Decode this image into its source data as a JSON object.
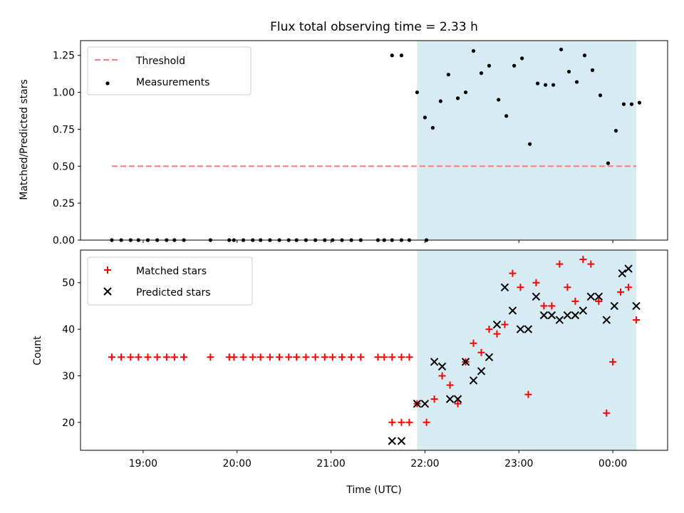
{
  "chart_data": [
    {
      "type": "scatter",
      "title": "Flux total observing time = 2.33 h",
      "xlabel": "",
      "ylabel": "Matched/Predicted stars",
      "ylim": [
        0,
        1.35
      ],
      "yticks": [
        "0.00",
        "0.25",
        "0.50",
        "0.75",
        "1.00",
        "1.25"
      ],
      "xlim": [
        "18:20",
        "00:35"
      ],
      "legend_position": "top-left",
      "shaded_interval": [
        "21:55",
        "00:15"
      ],
      "threshold": {
        "name": "Threshold",
        "value": 0.5,
        "x_range": [
          "18:40",
          "00:15"
        ],
        "color": "#f08080"
      },
      "series": [
        {
          "name": "Measurements",
          "color": "#000000",
          "points": [
            [
              "18:40",
              0
            ],
            [
              "18:46",
              0
            ],
            [
              "18:52",
              0
            ],
            [
              "18:57",
              0
            ],
            [
              "19:03",
              0
            ],
            [
              "19:09",
              0
            ],
            [
              "19:15",
              0
            ],
            [
              "19:20",
              0
            ],
            [
              "19:26",
              0
            ],
            [
              "19:43",
              0
            ],
            [
              "19:55",
              0
            ],
            [
              "19:58",
              0
            ],
            [
              "20:04",
              0
            ],
            [
              "20:10",
              0
            ],
            [
              "20:15",
              0
            ],
            [
              "20:21",
              0
            ],
            [
              "20:27",
              0
            ],
            [
              "20:33",
              0
            ],
            [
              "20:38",
              0
            ],
            [
              "20:44",
              0
            ],
            [
              "20:50",
              0
            ],
            [
              "20:56",
              0
            ],
            [
              "21:01",
              0
            ],
            [
              "21:07",
              0
            ],
            [
              "21:13",
              0
            ],
            [
              "21:19",
              0
            ],
            [
              "21:30",
              0
            ],
            [
              "21:34",
              0
            ],
            [
              "21:39",
              0
            ],
            [
              "21:45",
              0
            ],
            [
              "21:50",
              0
            ],
            [
              "22:01",
              0
            ],
            [
              "21:39",
              1.25
            ],
            [
              "21:45",
              1.25
            ],
            [
              "21:55",
              1.0
            ],
            [
              "22:00",
              0.83
            ],
            [
              "22:05",
              0.76
            ],
            [
              "22:10",
              0.94
            ],
            [
              "22:15",
              1.12
            ],
            [
              "22:21",
              0.96
            ],
            [
              "22:26",
              1.0
            ],
            [
              "22:31",
              1.28
            ],
            [
              "22:36",
              1.13
            ],
            [
              "22:41",
              1.18
            ],
            [
              "22:47",
              0.95
            ],
            [
              "22:52",
              0.84
            ],
            [
              "22:57",
              1.18
            ],
            [
              "23:02",
              1.23
            ],
            [
              "23:07",
              0.65
            ],
            [
              "23:12",
              1.06
            ],
            [
              "23:17",
              1.05
            ],
            [
              "23:22",
              1.05
            ],
            [
              "23:27",
              1.29
            ],
            [
              "23:32",
              1.14
            ],
            [
              "23:37",
              1.07
            ],
            [
              "23:42",
              1.25
            ],
            [
              "23:47",
              1.15
            ],
            [
              "23:52",
              0.98
            ],
            [
              "23:57",
              0.52
            ],
            [
              "00:02",
              0.74
            ],
            [
              "00:07",
              0.92
            ],
            [
              "00:12",
              0.92
            ],
            [
              "00:17",
              0.93
            ]
          ]
        }
      ]
    },
    {
      "type": "scatter",
      "title": "",
      "xlabel": "Time (UTC)",
      "ylabel": "Count",
      "ylim": [
        14,
        57
      ],
      "yticks": [
        "20",
        "30",
        "40",
        "50"
      ],
      "xticks": [
        "19:00",
        "20:00",
        "21:00",
        "22:00",
        "23:00",
        "00:00"
      ],
      "xlim": [
        "18:20",
        "00:35"
      ],
      "legend_position": "top-left",
      "shaded_interval": [
        "21:55",
        "00:15"
      ],
      "series": [
        {
          "name": "Matched stars",
          "marker": "+",
          "color": "#ff0000",
          "points": [
            [
              "18:40",
              34
            ],
            [
              "18:46",
              34
            ],
            [
              "18:52",
              34
            ],
            [
              "18:57",
              34
            ],
            [
              "19:03",
              34
            ],
            [
              "19:09",
              34
            ],
            [
              "19:15",
              34
            ],
            [
              "19:20",
              34
            ],
            [
              "19:26",
              34
            ],
            [
              "19:43",
              34
            ],
            [
              "19:55",
              34
            ],
            [
              "19:58",
              34
            ],
            [
              "20:04",
              34
            ],
            [
              "20:10",
              34
            ],
            [
              "20:15",
              34
            ],
            [
              "20:21",
              34
            ],
            [
              "20:27",
              34
            ],
            [
              "20:33",
              34
            ],
            [
              "20:38",
              34
            ],
            [
              "20:44",
              34
            ],
            [
              "20:50",
              34
            ],
            [
              "20:56",
              34
            ],
            [
              "21:01",
              34
            ],
            [
              "21:07",
              34
            ],
            [
              "21:13",
              34
            ],
            [
              "21:19",
              34
            ],
            [
              "21:30",
              34
            ],
            [
              "21:34",
              34
            ],
            [
              "21:39",
              34
            ],
            [
              "21:45",
              34
            ],
            [
              "21:50",
              34
            ],
            [
              "21:39",
              20
            ],
            [
              "21:45",
              20
            ],
            [
              "21:50",
              20
            ],
            [
              "21:55",
              24
            ],
            [
              "22:01",
              20
            ],
            [
              "22:06",
              25
            ],
            [
              "22:11",
              30
            ],
            [
              "22:16",
              28
            ],
            [
              "22:21",
              24
            ],
            [
              "22:26",
              33
            ],
            [
              "22:31",
              37
            ],
            [
              "22:36",
              35
            ],
            [
              "22:41",
              40
            ],
            [
              "22:46",
              39
            ],
            [
              "22:51",
              41
            ],
            [
              "22:56",
              52
            ],
            [
              "23:01",
              49
            ],
            [
              "23:06",
              26
            ],
            [
              "23:11",
              50
            ],
            [
              "23:16",
              45
            ],
            [
              "23:21",
              45
            ],
            [
              "23:26",
              54
            ],
            [
              "23:31",
              49
            ],
            [
              "23:36",
              46
            ],
            [
              "23:41",
              55
            ],
            [
              "23:46",
              54
            ],
            [
              "23:51",
              46
            ],
            [
              "23:56",
              22
            ],
            [
              "00:00",
              33
            ],
            [
              "00:05",
              48
            ],
            [
              "00:10",
              49
            ],
            [
              "00:15",
              42
            ]
          ]
        },
        {
          "name": "Predicted stars",
          "marker": "x",
          "color": "#000000",
          "points": [
            [
              "21:39",
              16
            ],
            [
              "21:45",
              16
            ],
            [
              "21:55",
              24
            ],
            [
              "22:00",
              24
            ],
            [
              "22:06",
              33
            ],
            [
              "22:11",
              32
            ],
            [
              "22:16",
              25
            ],
            [
              "22:21",
              25
            ],
            [
              "22:26",
              33
            ],
            [
              "22:31",
              29
            ],
            [
              "22:36",
              31
            ],
            [
              "22:41",
              34
            ],
            [
              "22:46",
              41
            ],
            [
              "22:51",
              49
            ],
            [
              "22:56",
              44
            ],
            [
              "23:01",
              40
            ],
            [
              "23:06",
              40
            ],
            [
              "23:11",
              47
            ],
            [
              "23:16",
              43
            ],
            [
              "23:21",
              43
            ],
            [
              "23:26",
              42
            ],
            [
              "23:31",
              43
            ],
            [
              "23:36",
              43
            ],
            [
              "23:41",
              44
            ],
            [
              "23:46",
              47
            ],
            [
              "23:51",
              47
            ],
            [
              "23:56",
              42
            ],
            [
              "00:01",
              45
            ],
            [
              "00:06",
              52
            ],
            [
              "00:10",
              53
            ],
            [
              "00:15",
              45
            ]
          ]
        }
      ]
    }
  ],
  "colors": {
    "shade": "#add8e6",
    "threshold": "#f08080"
  }
}
